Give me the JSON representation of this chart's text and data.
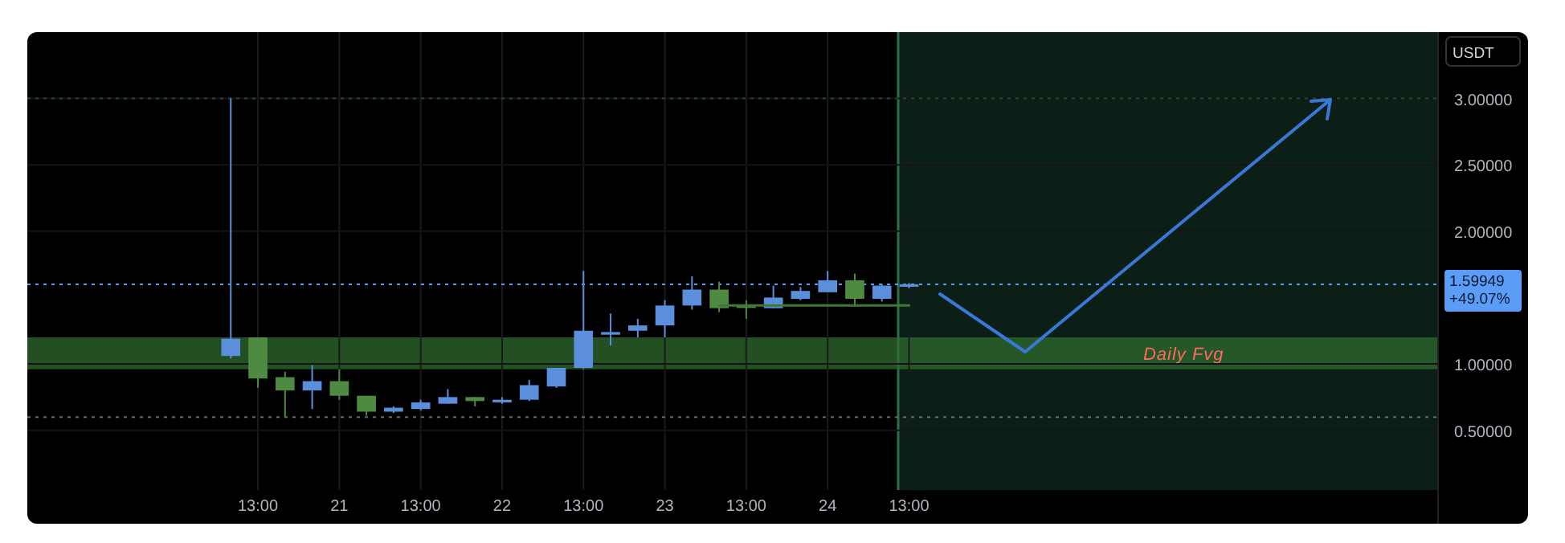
{
  "chart_data": {
    "type": "candlestick",
    "ylabel": "USDT",
    "grid": true,
    "categories": [
      null,
      null,
      null,
      null,
      null,
      null,
      null,
      null,
      "13:00",
      null,
      null,
      "21",
      null,
      null,
      "13:00",
      null,
      null,
      "22",
      null,
      null,
      "13:00",
      null,
      null,
      "23",
      null,
      null,
      "13:00",
      null,
      null,
      "24",
      null,
      null,
      "13:00",
      null,
      null,
      null,
      null,
      null,
      null,
      null,
      null,
      null,
      null,
      null,
      null,
      null,
      null,
      null,
      null,
      null,
      null,
      null
    ],
    "ylim": [
      0.05,
      3.5
    ],
    "yticks": [
      {
        "value": 0.5,
        "label": "0.50000"
      },
      {
        "value": 1,
        "label": "1.00000"
      },
      {
        "value": 2,
        "label": "2.00000"
      },
      {
        "value": 2.5,
        "label": "2.50000"
      },
      {
        "value": 3,
        "label": "3.00000"
      }
    ],
    "series": [
      {
        "ohlc": [
          null,
          null,
          null,
          null,
          null,
          null,
          null,
          [
            1.06,
            3.0,
            1.04,
            1.19
          ],
          [
            1.2,
            1.2,
            0.82,
            0.89
          ],
          [
            0.9,
            0.94,
            0.6,
            0.8
          ],
          [
            0.8,
            0.99,
            0.66,
            0.87
          ],
          [
            0.87,
            0.96,
            0.73,
            0.76
          ],
          [
            0.76,
            0.76,
            0.61,
            0.64
          ],
          [
            0.64,
            0.68,
            0.63,
            0.67
          ],
          [
            0.66,
            0.73,
            0.65,
            0.71
          ],
          [
            0.7,
            0.81,
            0.7,
            0.75
          ],
          [
            0.75,
            0.75,
            0.68,
            0.72
          ],
          [
            0.71,
            0.75,
            0.7,
            0.73
          ],
          [
            0.73,
            0.88,
            0.72,
            0.84
          ],
          [
            0.83,
            0.97,
            0.82,
            0.97
          ],
          [
            0.97,
            1.7,
            0.96,
            1.25
          ],
          [
            1.22,
            1.38,
            1.14,
            1.24
          ],
          [
            1.25,
            1.34,
            1.2,
            1.29
          ],
          [
            1.29,
            1.48,
            1.2,
            1.44
          ],
          [
            1.44,
            1.66,
            1.41,
            1.56
          ],
          [
            1.56,
            1.62,
            1.39,
            1.42
          ],
          [
            1.44,
            1.48,
            1.34,
            1.43
          ],
          [
            1.42,
            1.59,
            1.42,
            1.5
          ],
          [
            1.49,
            1.58,
            1.48,
            1.55
          ],
          [
            1.54,
            1.7,
            1.54,
            1.63
          ],
          [
            1.63,
            1.68,
            1.43,
            1.49
          ],
          [
            1.49,
            1.6,
            1.47,
            1.59
          ],
          [
            1.59,
            1.61,
            1.57,
            1.59949
          ],
          null,
          null,
          null,
          null,
          null,
          null,
          null,
          null,
          null,
          null,
          null,
          null,
          null,
          null,
          null,
          null,
          null,
          null,
          null
        ],
        "colors": [
          null,
          null,
          null,
          null,
          null,
          null,
          null,
          "#5b8edb",
          "#4f8a42",
          "#4f8a42",
          "#5b8edb",
          "#4f8a42",
          "#4f8a42",
          "#5b8edb",
          "#5b8edb",
          "#5b8edb",
          "#4f8a42",
          "#5b8edb",
          "#5b8edb",
          "#5b8edb",
          "#5b8edb",
          "#5b8edb",
          "#5b8edb",
          "#5b8edb",
          "#5b8edb",
          "#4f8a42",
          "#4f8a42",
          "#5b8edb",
          "#5b8edb",
          "#5b8edb",
          "#4f8a42",
          "#5b8edb",
          "#5b8edb",
          null,
          null,
          null,
          null,
          null,
          null,
          null,
          null,
          null,
          null,
          null,
          null,
          null,
          null,
          null,
          null,
          null,
          null,
          null
        ]
      },
      {
        "type": "line",
        "color": "#3f7a34",
        "values": [
          null,
          null,
          null,
          null,
          null,
          null,
          null,
          null,
          null,
          null,
          null,
          null,
          null,
          null,
          null,
          null,
          null,
          null,
          null,
          null,
          null,
          null,
          null,
          null,
          null,
          1.44,
          1.44,
          1.44,
          1.44,
          1.44,
          1.44,
          1.44,
          1.44,
          null,
          null,
          null,
          null,
          null,
          null,
          null,
          null,
          null,
          null,
          null,
          null,
          null,
          null,
          null,
          null,
          null,
          null,
          null
        ]
      }
    ],
    "ref_lines": [
      {
        "axis": "y",
        "value": 3.0,
        "color": "#1f4a2a",
        "line_style": "dotted"
      },
      {
        "axis": "y",
        "value": 1.59949,
        "label": "1.59949 +49.07%",
        "color": "#5b9cf6",
        "line_style": "dotted"
      },
      {
        "axis": "y",
        "value": 0.6,
        "color": "#6a6a6a",
        "line_style": "dotted"
      }
    ],
    "bands": [
      {
        "axis": "y",
        "from": 0.96,
        "to": 1.2,
        "label": "Daily Fvg",
        "color": "#2f6b2f"
      }
    ]
  }
}
